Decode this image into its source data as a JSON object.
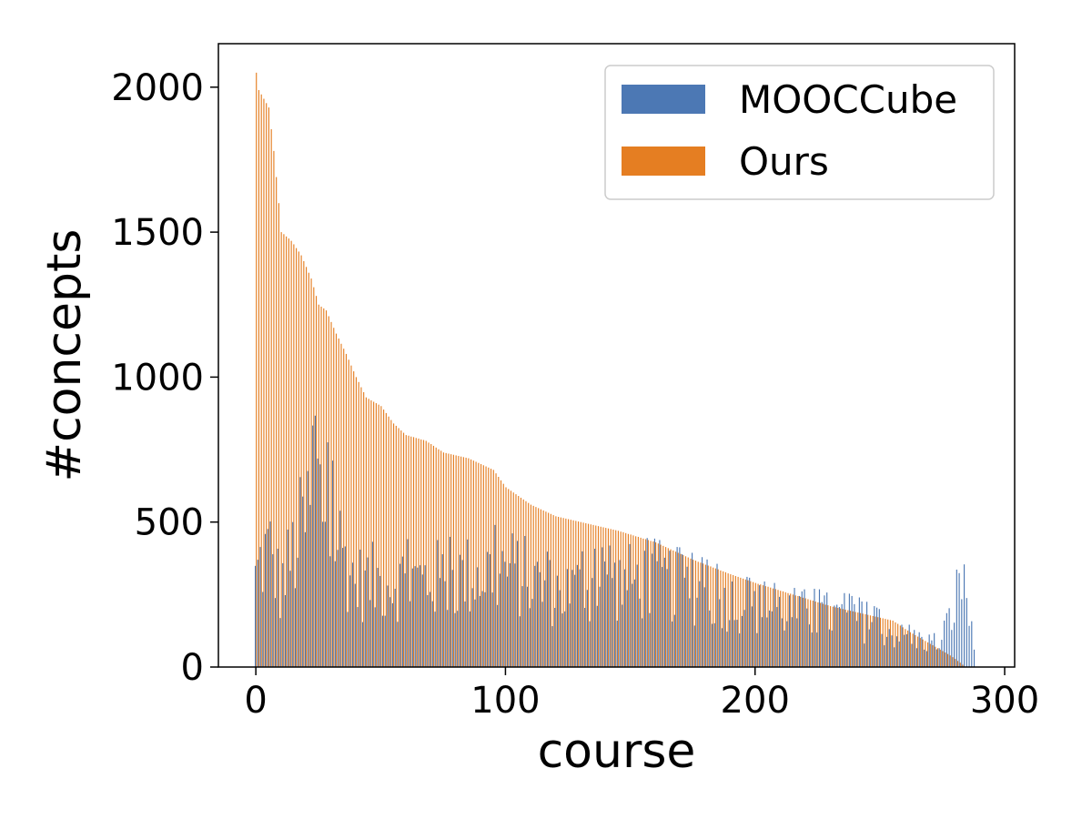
{
  "chart_data": {
    "type": "bar",
    "title": "",
    "xlabel": "course",
    "ylabel": "#concepts",
    "xlim": [
      -15,
      304
    ],
    "ylim": [
      0,
      2150
    ],
    "x_ticks": [
      0,
      100,
      200,
      300
    ],
    "y_ticks": [
      0,
      500,
      1000,
      1500,
      2000
    ],
    "grid": false,
    "legend_position": "top-right",
    "num_courses": 289,
    "series": [
      {
        "name": "MOOCCube",
        "color": "#4c78b4",
        "profile": [
          [
            0,
            450
          ],
          [
            3,
            560
          ],
          [
            6,
            580
          ],
          [
            10,
            400
          ],
          [
            25,
            900
          ],
          [
            40,
            430
          ],
          [
            80,
            450
          ],
          [
            100,
            500
          ],
          [
            120,
            380
          ],
          [
            160,
            450
          ],
          [
            200,
            300
          ],
          [
            240,
            250
          ],
          [
            260,
            150
          ],
          [
            275,
            120
          ],
          [
            284,
            480
          ],
          [
            288,
            60
          ]
        ],
        "values": []
      },
      {
        "name": "Ours",
        "color": "#e57e22",
        "profile": [
          [
            0,
            2050
          ],
          [
            1,
            1990
          ],
          [
            3,
            1960
          ],
          [
            5,
            1930
          ],
          [
            7,
            1780
          ],
          [
            9,
            1600
          ],
          [
            10,
            1500
          ],
          [
            14,
            1470
          ],
          [
            18,
            1420
          ],
          [
            22,
            1340
          ],
          [
            25,
            1250
          ],
          [
            28,
            1230
          ],
          [
            32,
            1150
          ],
          [
            36,
            1080
          ],
          [
            40,
            1000
          ],
          [
            44,
            930
          ],
          [
            50,
            900
          ],
          [
            55,
            840
          ],
          [
            60,
            800
          ],
          [
            68,
            780
          ],
          [
            75,
            740
          ],
          [
            85,
            720
          ],
          [
            95,
            680
          ],
          [
            100,
            620
          ],
          [
            110,
            560
          ],
          [
            120,
            520
          ],
          [
            135,
            490
          ],
          [
            145,
            470
          ],
          [
            160,
            430
          ],
          [
            175,
            370
          ],
          [
            190,
            320
          ],
          [
            200,
            290
          ],
          [
            215,
            250
          ],
          [
            230,
            210
          ],
          [
            245,
            180
          ],
          [
            255,
            160
          ],
          [
            262,
            120
          ],
          [
            270,
            80
          ],
          [
            278,
            40
          ],
          [
            282,
            15
          ],
          [
            284,
            0
          ],
          [
            288,
            0
          ]
        ],
        "values": []
      }
    ]
  }
}
